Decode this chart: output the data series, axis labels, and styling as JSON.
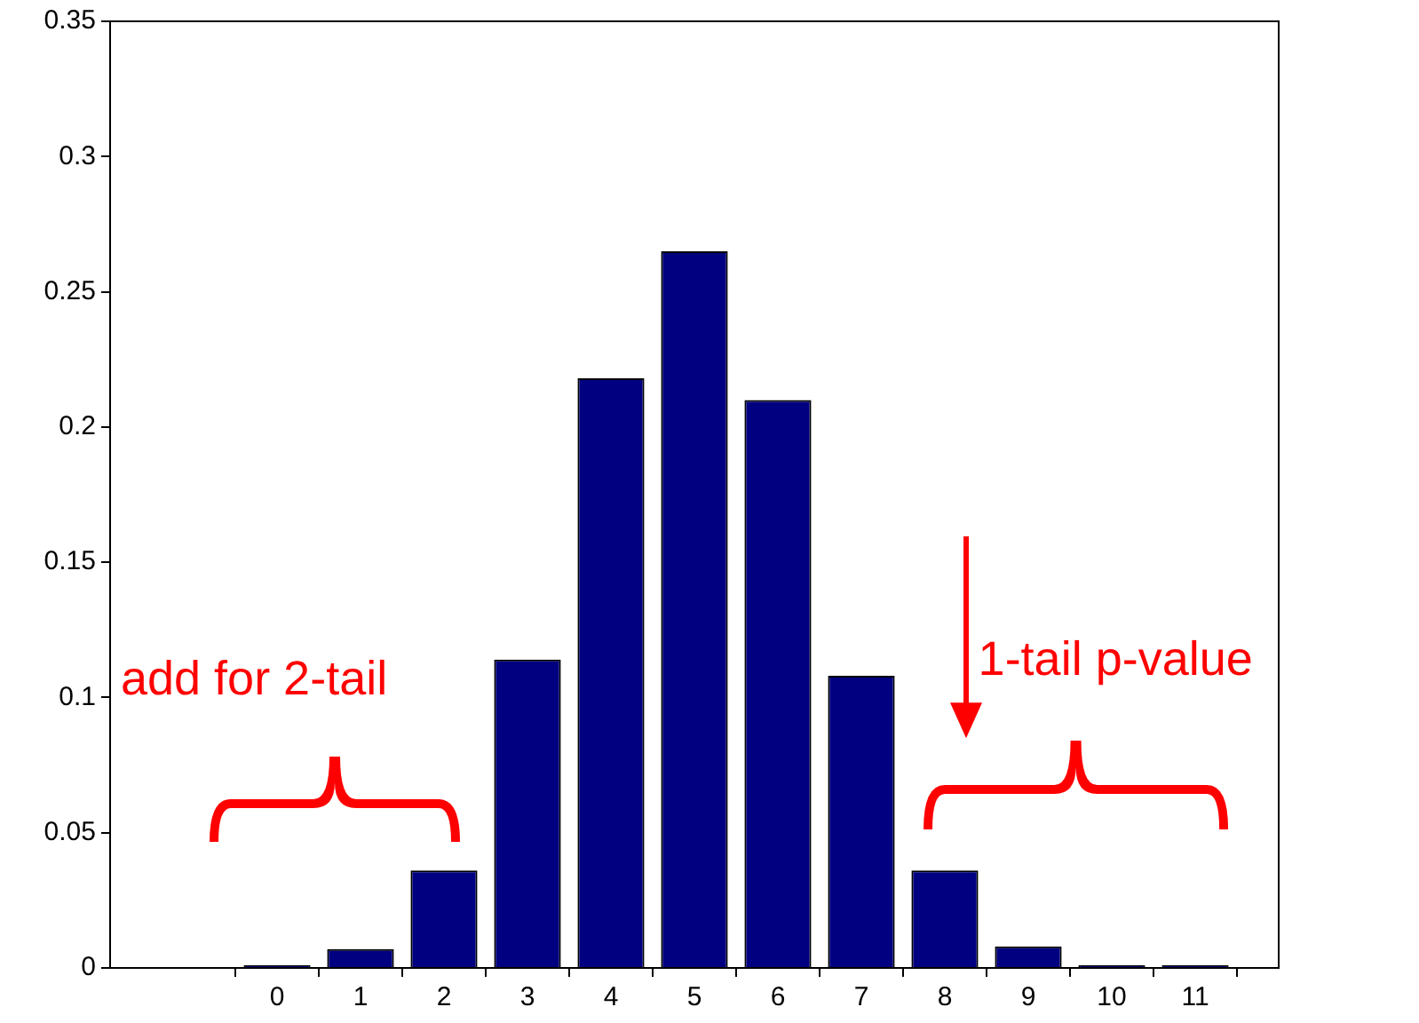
{
  "chart_data": {
    "type": "bar",
    "x": [
      0,
      1,
      2,
      3,
      4,
      5,
      6,
      7,
      8,
      9,
      10,
      11
    ],
    "values": [
      0.001,
      0.007,
      0.036,
      0.114,
      0.218,
      0.265,
      0.21,
      0.108,
      0.036,
      0.008,
      0.001,
      0.001
    ],
    "color": "#000080",
    "xlim": [
      -2,
      12
    ],
    "xticks": [
      0,
      1,
      2,
      3,
      4,
      5,
      6,
      7,
      8,
      9,
      10,
      11
    ],
    "ylim": [
      0,
      0.35
    ],
    "yticks": [
      0,
      0.05,
      0.1,
      0.15,
      0.2,
      0.25,
      0.3,
      0.35
    ],
    "grid": false,
    "legend": false,
    "annotations": [
      "add for 2-tail",
      "1-tail p-value"
    ]
  }
}
